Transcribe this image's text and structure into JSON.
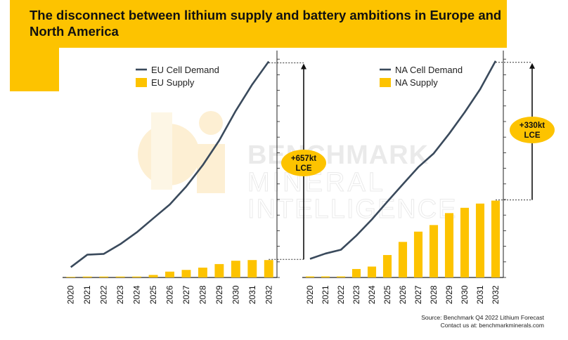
{
  "title": "The disconnect between lithium supply and battery ambitions in Europe and North America",
  "watermark": {
    "line1": "BENCHMARK",
    "line2": "MINERAL",
    "line3": "INTELLIGENCE"
  },
  "source": "Source: Benchmark Q4 2022 Lithium Forecast",
  "contact": "Contact us at: benchmarkminerals.com",
  "colors": {
    "demand_line": "#3A4A5C",
    "supply_bar": "#FDC300",
    "accent": "#FDC300",
    "axis": "#222222"
  },
  "chart_data": [
    {
      "type": "bar",
      "region": "EU",
      "categories": [
        "2020",
        "2021",
        "2022",
        "2023",
        "2024",
        "2025",
        "2026",
        "2027",
        "2028",
        "2029",
        "2030",
        "2031",
        "2032"
      ],
      "series": [
        {
          "name": "EU Cell Demand",
          "type": "line",
          "values": [
            90,
            199,
            206,
            291,
            394,
            516,
            637,
            794,
            980,
            1196,
            1454,
            1684,
            1885
          ]
        },
        {
          "name": "EU Supply",
          "type": "bar",
          "values": [
            5,
            8,
            8,
            8,
            8,
            22,
            51,
            66,
            86,
            117,
            146,
            152,
            152
          ]
        }
      ],
      "annotation": {
        "text_line1": "+657kt",
        "text_line2": "LCE",
        "value": 657
      },
      "ylim": [
        0,
        1900
      ],
      "grid": false,
      "legend": "top-left"
    },
    {
      "type": "bar",
      "region": "NA",
      "categories": [
        "2020",
        "2021",
        "2022",
        "2023",
        "2024",
        "2025",
        "2026",
        "2027",
        "2028",
        "2029",
        "2030",
        "2031",
        "2032"
      ],
      "series": [
        {
          "name": "NA Cell Demand",
          "type": "line",
          "values": [
            176,
            226,
            262,
            396,
            548,
            716,
            880,
            1042,
            1172,
            1358,
            1560,
            1778,
            2045
          ]
        },
        {
          "name": "NA Supply",
          "type": "bar",
          "values": [
            10,
            10,
            10,
            80,
            103,
            212,
            336,
            433,
            495,
            608,
            658,
            698,
            726
          ]
        }
      ],
      "annotation": {
        "text_line1": "+330kt",
        "text_line2": "LCE",
        "value": 330
      },
      "ylim": [
        0,
        2070
      ],
      "grid": false,
      "legend": "top-left"
    }
  ]
}
